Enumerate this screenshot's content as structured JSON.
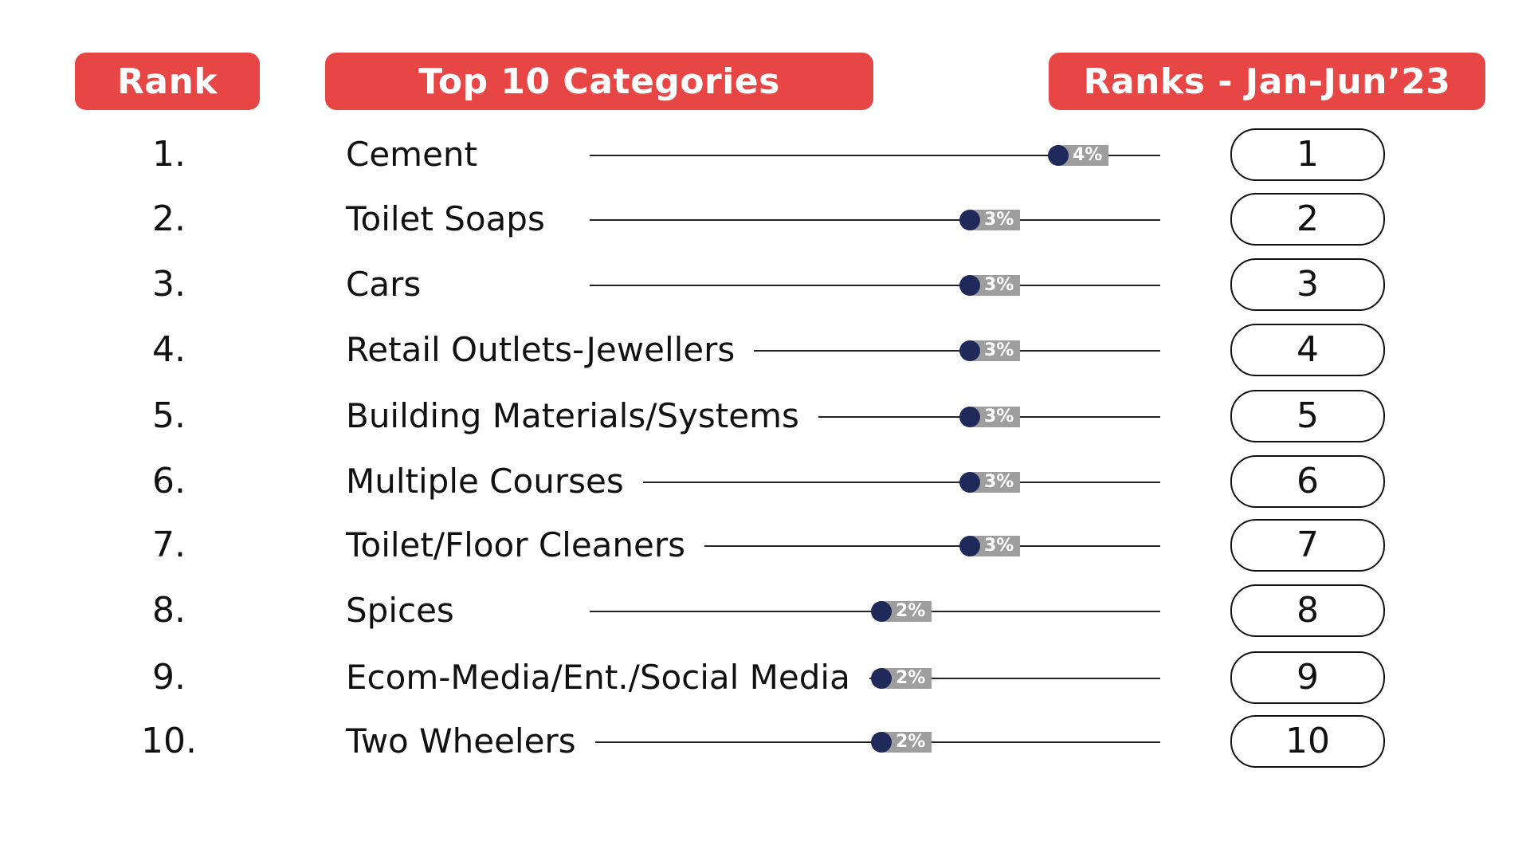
{
  "headers": {
    "rank": "Rank",
    "categories": "Top 10 Categories",
    "ranks_period": "Ranks - Jan-Jun’23"
  },
  "colors": {
    "header_bg": "#e84545",
    "dot": "#1f2a5a",
    "tag_bg": "#9e9e9e"
  },
  "chart_data": {
    "type": "dot",
    "rows": [
      {
        "rank_label": "1.",
        "category": "Cement",
        "value": 4,
        "value_label": "4%",
        "period_rank": "1"
      },
      {
        "rank_label": "2.",
        "category": "Toilet Soaps",
        "value": 3,
        "value_label": "3%",
        "period_rank": "2"
      },
      {
        "rank_label": "3.",
        "category": "Cars",
        "value": 3,
        "value_label": "3%",
        "period_rank": "3"
      },
      {
        "rank_label": "4.",
        "category": "Retail Outlets-Jewellers",
        "value": 3,
        "value_label": "3%",
        "period_rank": "4"
      },
      {
        "rank_label": "5.",
        "category": "Building Materials/Systems",
        "value": 3,
        "value_label": "3%",
        "period_rank": "5"
      },
      {
        "rank_label": "6.",
        "category": "Multiple Courses",
        "value": 3,
        "value_label": "3%",
        "period_rank": "6"
      },
      {
        "rank_label": "7.",
        "category": "Toilet/Floor Cleaners",
        "value": 3,
        "value_label": "3%",
        "period_rank": "7"
      },
      {
        "rank_label": "8.",
        "category": "Spices",
        "value": 2,
        "value_label": "2%",
        "period_rank": "8"
      },
      {
        "rank_label": "9.",
        "category": "Ecom-Media/Ent./Social Media",
        "value": 2,
        "value_label": "2%",
        "period_rank": "9"
      },
      {
        "rank_label": "10.",
        "category": "Two Wheelers",
        "value": 2,
        "value_label": "2%",
        "period_rank": "10"
      }
    ]
  }
}
